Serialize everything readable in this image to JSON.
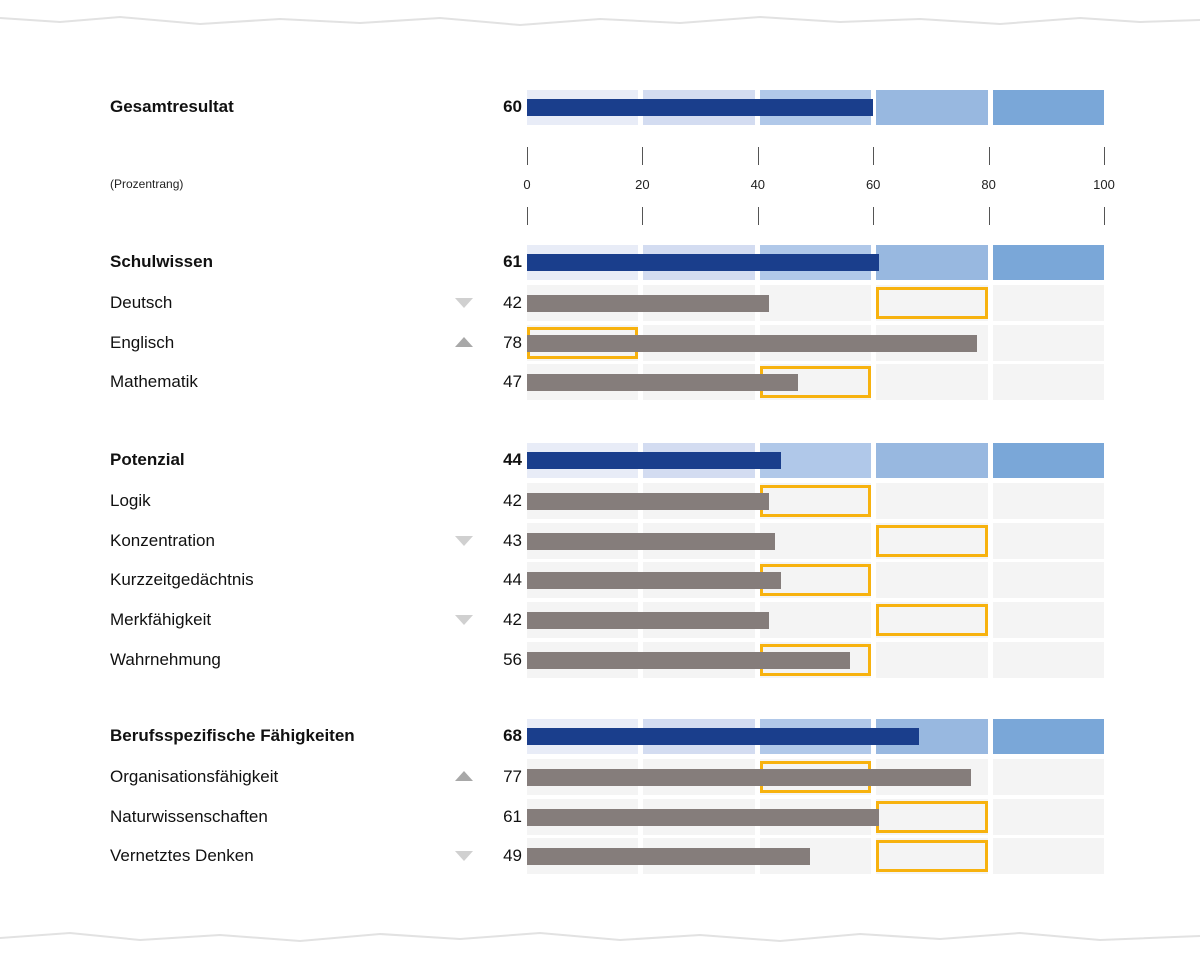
{
  "chart_data": {
    "type": "bar",
    "orientation": "horizontal",
    "unit_label": "(Prozentrang)",
    "xlim": [
      0,
      100
    ],
    "x_ticks": [
      "0",
      "20",
      "40",
      "60",
      "80",
      "100"
    ],
    "overall": {
      "label": "Gesamtresultat",
      "value": 60
    },
    "groups": [
      {
        "label": "Schulwissen",
        "value": 61,
        "items": [
          {
            "label": "Deutsch",
            "value": 42,
            "trend": "down",
            "target_band": 3
          },
          {
            "label": "Englisch",
            "value": 78,
            "trend": "up",
            "target_band": 0
          },
          {
            "label": "Mathematik",
            "value": 47,
            "trend": null,
            "target_band": 2
          }
        ]
      },
      {
        "label": "Potenzial",
        "value": 44,
        "items": [
          {
            "label": "Logik",
            "value": 42,
            "trend": null,
            "target_band": 2
          },
          {
            "label": "Konzentration",
            "value": 43,
            "trend": "down",
            "target_band": 3
          },
          {
            "label": "Kurzzeitgedächtnis",
            "value": 44,
            "trend": null,
            "target_band": 2
          },
          {
            "label": "Merkfähigkeit",
            "value": 42,
            "trend": "down",
            "target_band": 3
          },
          {
            "label": "Wahrnehmung",
            "value": 56,
            "trend": null,
            "target_band": 2
          }
        ]
      },
      {
        "label": "Berufsspezifische Fähigkeiten",
        "value": 68,
        "items": [
          {
            "label": "Organisationsfähigkeit",
            "value": 77,
            "trend": "up",
            "target_band": 2
          },
          {
            "label": "Naturwissenschaften",
            "value": 61,
            "trend": null,
            "target_band": 3
          },
          {
            "label": "Vernetztes Denken",
            "value": 49,
            "trend": "down",
            "target_band": 3
          }
        ]
      }
    ]
  },
  "colors": {
    "bands": [
      "#e8ecf7",
      "#d3dcf1",
      "#b0c8e9",
      "#98b8e0",
      "#7aa7d8"
    ],
    "row_bg": "#f4f4f4",
    "total_bar": "#1a3e8c",
    "item_bar": "#857d7b",
    "target": "#f7b20f",
    "arrow_up": "#a8a8a8",
    "arrow_down": "#d0d0d0"
  }
}
